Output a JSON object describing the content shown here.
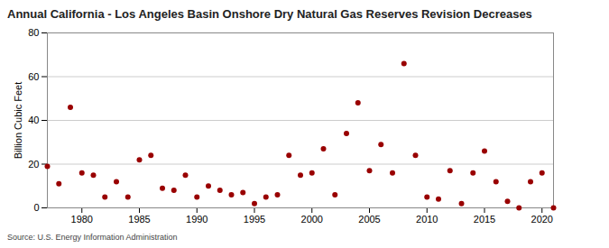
{
  "chart_data": {
    "type": "scatter",
    "title": "Annual California - Los Angeles Basin Onshore Dry Natural Gas Reserves Revision Decreases",
    "y_label": "Billion Cubic Feet",
    "source": "Source: U.S. Energy Information Administration",
    "x": [
      1977,
      1978,
      1979,
      1980,
      1981,
      1982,
      1983,
      1984,
      1985,
      1986,
      1987,
      1988,
      1989,
      1990,
      1991,
      1992,
      1993,
      1994,
      1995,
      1996,
      1997,
      1998,
      1999,
      2000,
      2001,
      2002,
      2003,
      2004,
      2005,
      2006,
      2007,
      2008,
      2009,
      2010,
      2011,
      2012,
      2013,
      2014,
      2015,
      2016,
      2017,
      2018,
      2019,
      2020,
      2021
    ],
    "values": [
      19,
      11,
      46,
      16,
      15,
      5,
      12,
      5,
      22,
      24,
      9,
      8,
      15,
      5,
      10,
      8,
      6,
      7,
      2,
      5,
      6,
      24,
      15,
      16,
      27,
      6,
      34,
      48,
      17,
      29,
      16,
      66,
      24,
      5,
      4,
      17,
      2,
      16,
      26,
      12,
      3,
      0,
      12,
      16,
      0
    ],
    "color": "#990000",
    "marker": "circle",
    "xlim": [
      1977,
      2021
    ],
    "xticks": [
      1980,
      1985,
      1990,
      1995,
      2000,
      2005,
      2010,
      2015,
      2020
    ],
    "ylim": [
      0,
      80
    ],
    "yticks": [
      0,
      20,
      40,
      60,
      80
    ],
    "grid": true
  }
}
